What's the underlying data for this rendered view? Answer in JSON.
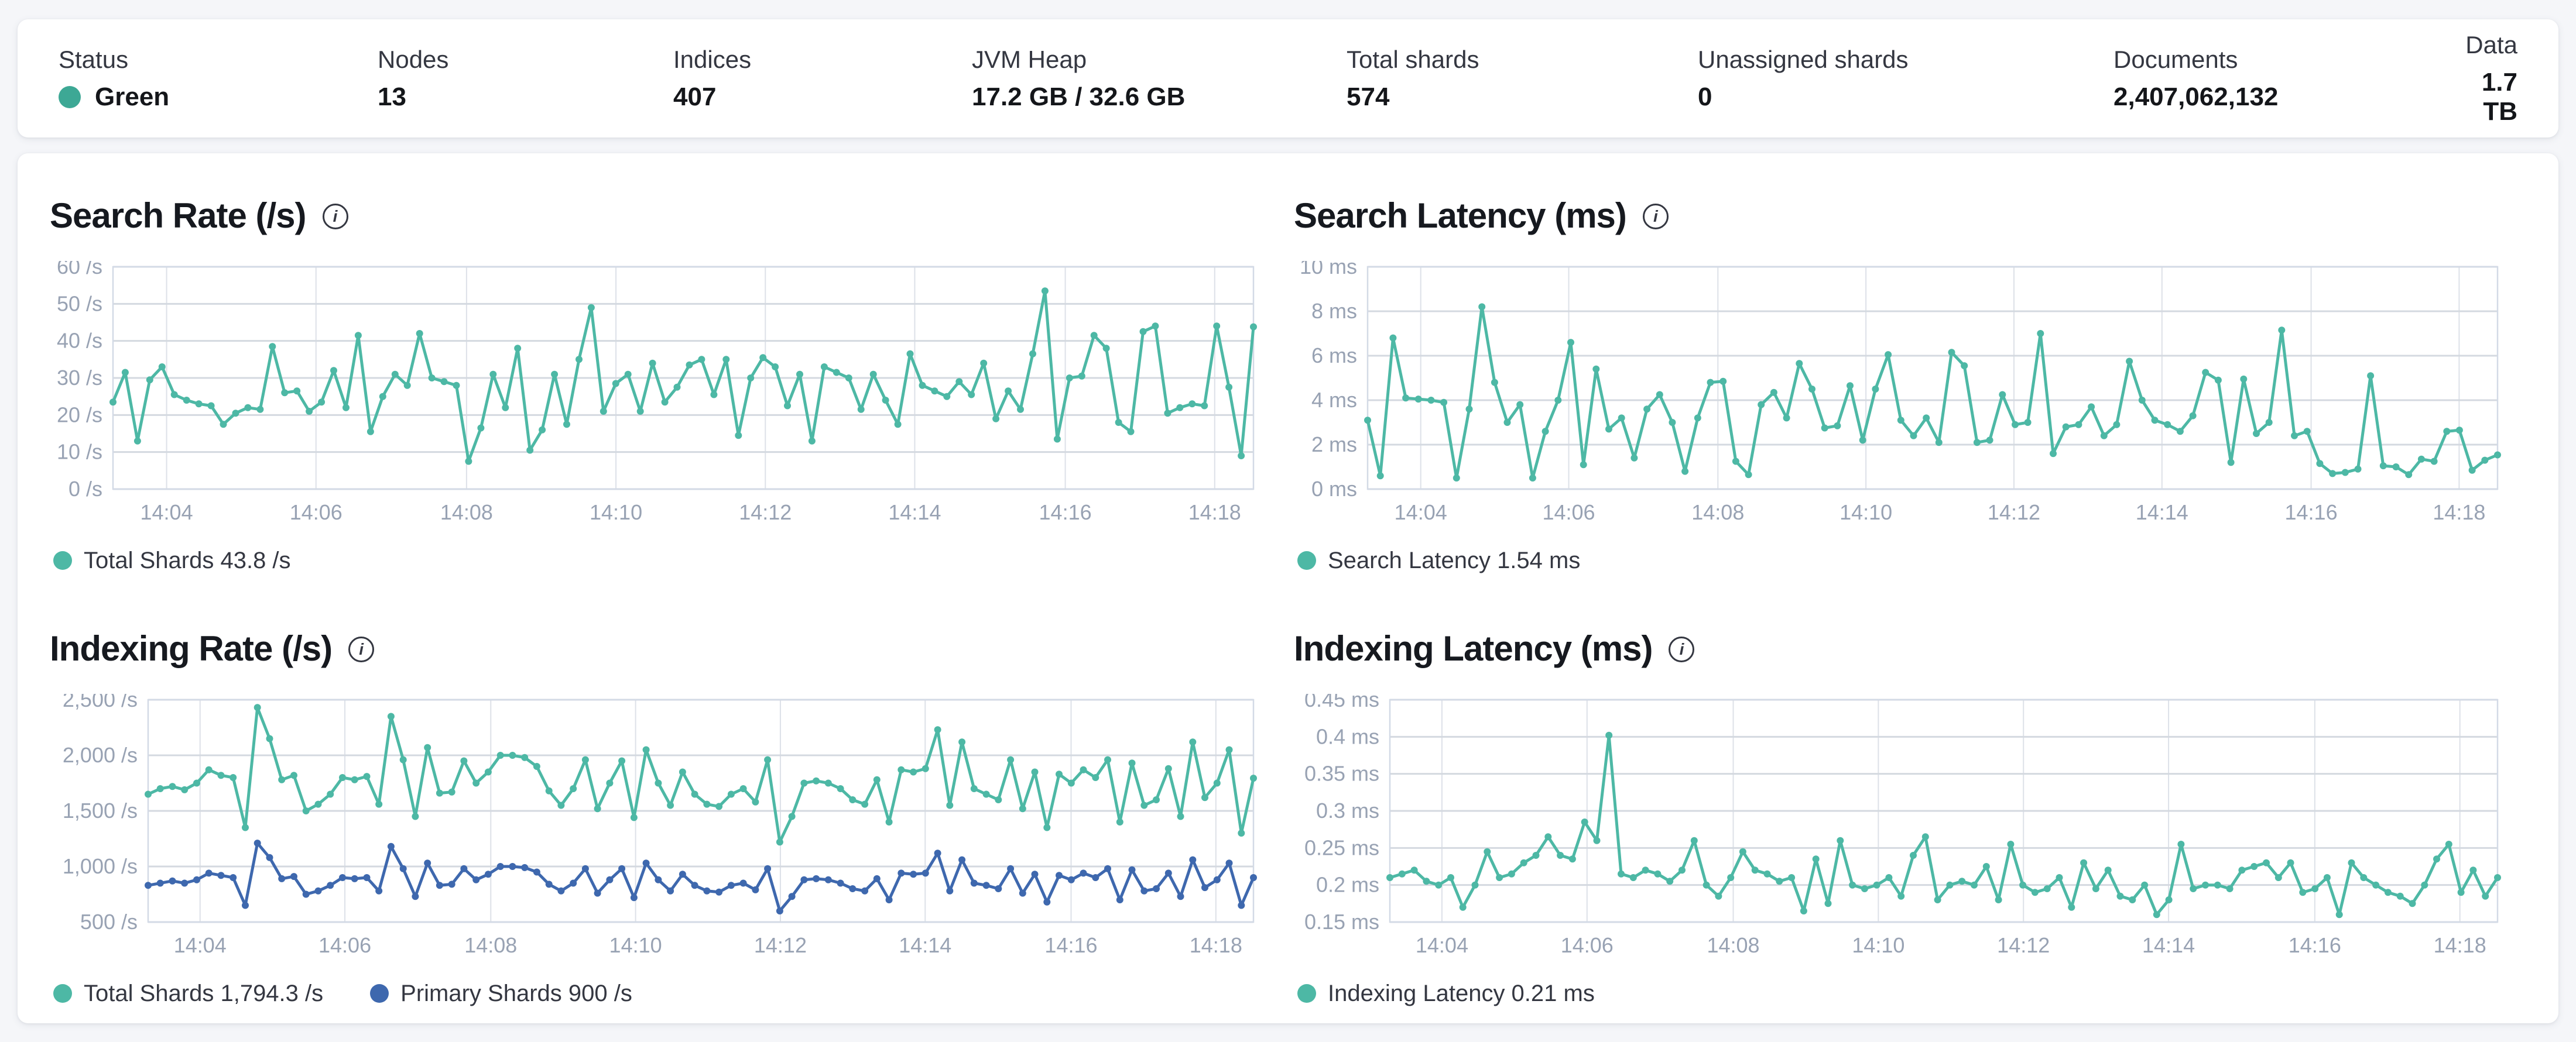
{
  "status_bar": {
    "items": [
      {
        "label": "Status",
        "value": "Green",
        "type": "status",
        "dot_color": "#3DA895"
      },
      {
        "label": "Nodes",
        "value": "13"
      },
      {
        "label": "Indices",
        "value": "407"
      },
      {
        "label": "JVM Heap",
        "value": "17.2 GB / 32.6 GB"
      },
      {
        "label": "Total shards",
        "value": "574"
      },
      {
        "label": "Unassigned shards",
        "value": "0"
      },
      {
        "label": "Documents",
        "value": "2,407,062,132"
      },
      {
        "label": "Data",
        "value": "1.7 TB",
        "align": "right"
      }
    ]
  },
  "colors": {
    "teal": "#4DB8A5",
    "blue": "#3E68AE",
    "status_green_dot": "#3DA895",
    "grid_h": "#d4d9e0",
    "grid_v": "#dde1e8",
    "plot_border": "#d3dae6",
    "axis_text": "#98a2b3"
  },
  "info_icon_glyph": "i",
  "chart_data": [
    {
      "id": "search-rate",
      "type": "line",
      "title": "Search Rate (/s)",
      "ylim": [
        0,
        60
      ],
      "y_ticks": [
        {
          "label": "60 /s",
          "value": 60
        },
        {
          "label": "50 /s",
          "value": 50
        },
        {
          "label": "40 /s",
          "value": 40
        },
        {
          "label": "30 /s",
          "value": 30
        },
        {
          "label": "20 /s",
          "value": 20
        },
        {
          "label": "10 /s",
          "value": 10
        },
        {
          "label": "0 /s",
          "value": 0
        }
      ],
      "x_ticks": [
        {
          "label": "14:04",
          "f": 0.047
        },
        {
          "label": "14:06",
          "f": 0.178
        },
        {
          "label": "14:08",
          "f": 0.31
        },
        {
          "label": "14:10",
          "f": 0.441
        },
        {
          "label": "14:12",
          "f": 0.572
        },
        {
          "label": "14:14",
          "f": 0.703
        },
        {
          "label": "14:16",
          "f": 0.835
        },
        {
          "label": "14:18",
          "f": 0.966
        }
      ],
      "series": [
        {
          "name": "total-shards",
          "legend_label": "Total Shards 43.8 /s",
          "color": "#4DB8A5",
          "values": [
            23.5,
            31.5,
            13,
            29.5,
            33,
            25.5,
            24,
            23,
            22.5,
            17.5,
            20.5,
            22,
            21.5,
            38.5,
            26,
            26.5,
            21,
            23.5,
            32,
            22,
            41.5,
            15.5,
            25,
            31,
            28,
            42,
            30,
            29,
            28,
            7.5,
            16.5,
            31,
            22,
            38,
            10.5,
            16,
            31,
            17.5,
            35,
            49,
            21,
            28.5,
            31,
            21,
            34,
            23.5,
            27.5,
            33.5,
            35,
            25.5,
            35,
            14.5,
            30,
            35.5,
            33,
            22.5,
            31,
            13,
            33,
            31.5,
            30,
            21.5,
            31,
            24,
            17.5,
            36.5,
            28,
            26.5,
            25,
            29,
            25.5,
            34,
            19,
            26.5,
            21.5,
            36.5,
            53.5,
            13.5,
            30,
            30.5,
            41.5,
            38,
            18,
            15.5,
            42.5,
            44,
            20.5,
            22,
            23,
            22.5,
            44,
            27.5,
            9,
            43.8
          ]
        }
      ]
    },
    {
      "id": "search-latency",
      "type": "line",
      "title": "Search Latency (ms)",
      "ylim": [
        0,
        10
      ],
      "y_ticks": [
        {
          "label": "10 ms",
          "value": 10
        },
        {
          "label": "8 ms",
          "value": 8
        },
        {
          "label": "6 ms",
          "value": 6
        },
        {
          "label": "4 ms",
          "value": 4
        },
        {
          "label": "2 ms",
          "value": 2
        },
        {
          "label": "0 ms",
          "value": 0
        }
      ],
      "x_ticks": [
        {
          "label": "14:04",
          "f": 0.047
        },
        {
          "label": "14:06",
          "f": 0.178
        },
        {
          "label": "14:08",
          "f": 0.31
        },
        {
          "label": "14:10",
          "f": 0.441
        },
        {
          "label": "14:12",
          "f": 0.572
        },
        {
          "label": "14:14",
          "f": 0.703
        },
        {
          "label": "14:16",
          "f": 0.835
        },
        {
          "label": "14:18",
          "f": 0.966
        }
      ],
      "series": [
        {
          "name": "search-latency",
          "legend_label": "Search Latency 1.54 ms",
          "color": "#4DB8A5",
          "values": [
            3.1,
            0.6,
            6.8,
            4.1,
            4.05,
            4.0,
            3.9,
            0.5,
            3.6,
            8.2,
            4.8,
            3.0,
            3.8,
            0.5,
            2.6,
            4.0,
            6.6,
            1.1,
            5.4,
            2.7,
            3.2,
            1.4,
            3.6,
            4.25,
            3.0,
            0.8,
            3.2,
            4.8,
            4.85,
            1.25,
            0.65,
            3.8,
            4.35,
            3.2,
            5.65,
            4.5,
            2.75,
            2.85,
            4.65,
            2.2,
            4.5,
            6.05,
            3.1,
            2.4,
            3.2,
            2.1,
            6.15,
            5.55,
            2.1,
            2.2,
            4.25,
            2.9,
            3.0,
            7.0,
            1.6,
            2.8,
            2.9,
            3.7,
            2.4,
            2.9,
            5.75,
            4.0,
            3.1,
            2.9,
            2.6,
            3.3,
            5.25,
            4.9,
            1.2,
            4.95,
            2.5,
            3.0,
            7.15,
            2.4,
            2.6,
            1.15,
            0.7,
            0.75,
            0.9,
            5.1,
            1.05,
            1.0,
            0.65,
            1.35,
            1.25,
            2.6,
            2.65,
            0.85,
            1.3,
            1.54
          ]
        }
      ]
    },
    {
      "id": "indexing-rate",
      "type": "line",
      "title": "Indexing Rate (/s)",
      "ylim": [
        500,
        2500
      ],
      "y_ticks": [
        {
          "label": "2,500 /s",
          "value": 2500
        },
        {
          "label": "2,000 /s",
          "value": 2000
        },
        {
          "label": "1,500 /s",
          "value": 1500
        },
        {
          "label": "1,000 /s",
          "value": 1000
        },
        {
          "label": "500 /s",
          "value": 500
        }
      ],
      "x_ticks": [
        {
          "label": "14:04",
          "f": 0.047
        },
        {
          "label": "14:06",
          "f": 0.178
        },
        {
          "label": "14:08",
          "f": 0.31
        },
        {
          "label": "14:10",
          "f": 0.441
        },
        {
          "label": "14:12",
          "f": 0.572
        },
        {
          "label": "14:14",
          "f": 0.703
        },
        {
          "label": "14:16",
          "f": 0.835
        },
        {
          "label": "14:18",
          "f": 0.966
        }
      ],
      "series": [
        {
          "name": "total-shards",
          "legend_label": "Total Shards 1,794.3 /s",
          "color": "#4DB8A5",
          "values": [
            1650,
            1700,
            1720,
            1690,
            1750,
            1870,
            1820,
            1800,
            1350,
            2430,
            2150,
            1780,
            1820,
            1500,
            1560,
            1650,
            1800,
            1780,
            1810,
            1560,
            2350,
            1960,
            1450,
            2070,
            1660,
            1670,
            1950,
            1750,
            1850,
            2000,
            2000,
            1980,
            1900,
            1680,
            1550,
            1700,
            1960,
            1520,
            1750,
            1950,
            1440,
            2050,
            1750,
            1550,
            1850,
            1650,
            1560,
            1540,
            1650,
            1700,
            1580,
            1960,
            1220,
            1450,
            1750,
            1770,
            1750,
            1700,
            1600,
            1560,
            1780,
            1400,
            1870,
            1850,
            1880,
            2230,
            1550,
            2120,
            1700,
            1650,
            1600,
            1960,
            1520,
            1850,
            1350,
            1830,
            1750,
            1870,
            1800,
            1960,
            1400,
            1930,
            1550,
            1600,
            1880,
            1450,
            2120,
            1620,
            1750,
            2050,
            1300,
            1794.3
          ]
        },
        {
          "name": "primary-shards",
          "legend_label": "Primary Shards 900 /s",
          "color": "#3E68AE",
          "values": [
            830,
            850,
            870,
            850,
            880,
            940,
            920,
            900,
            650,
            1210,
            1080,
            890,
            910,
            750,
            780,
            830,
            900,
            890,
            900,
            780,
            1180,
            980,
            730,
            1030,
            830,
            840,
            980,
            880,
            930,
            1000,
            1000,
            990,
            950,
            840,
            780,
            850,
            980,
            760,
            880,
            980,
            720,
            1030,
            880,
            780,
            930,
            830,
            780,
            770,
            830,
            850,
            790,
            980,
            600,
            730,
            880,
            890,
            880,
            850,
            800,
            780,
            890,
            700,
            940,
            930,
            940,
            1120,
            780,
            1060,
            850,
            830,
            800,
            980,
            760,
            930,
            680,
            920,
            880,
            940,
            900,
            980,
            700,
            970,
            780,
            800,
            940,
            730,
            1060,
            810,
            880,
            1030,
            650,
            900
          ]
        }
      ]
    },
    {
      "id": "indexing-latency",
      "type": "line",
      "title": "Indexing Latency (ms)",
      "ylim": [
        0.15,
        0.45
      ],
      "y_ticks": [
        {
          "label": "0.45 ms",
          "value": 0.45
        },
        {
          "label": "0.4 ms",
          "value": 0.4
        },
        {
          "label": "0.35 ms",
          "value": 0.35
        },
        {
          "label": "0.3 ms",
          "value": 0.3
        },
        {
          "label": "0.25 ms",
          "value": 0.25
        },
        {
          "label": "0.2 ms",
          "value": 0.2
        },
        {
          "label": "0.15 ms",
          "value": 0.15
        }
      ],
      "x_ticks": [
        {
          "label": "14:04",
          "f": 0.047
        },
        {
          "label": "14:06",
          "f": 0.178
        },
        {
          "label": "14:08",
          "f": 0.31
        },
        {
          "label": "14:10",
          "f": 0.441
        },
        {
          "label": "14:12",
          "f": 0.572
        },
        {
          "label": "14:14",
          "f": 0.703
        },
        {
          "label": "14:16",
          "f": 0.835
        },
        {
          "label": "14:18",
          "f": 0.966
        }
      ],
      "series": [
        {
          "name": "indexing-latency",
          "legend_label": "Indexing Latency 0.21 ms",
          "color": "#4DB8A5",
          "values": [
            0.21,
            0.215,
            0.22,
            0.205,
            0.2,
            0.21,
            0.17,
            0.2,
            0.245,
            0.21,
            0.215,
            0.23,
            0.24,
            0.265,
            0.24,
            0.235,
            0.285,
            0.26,
            0.402,
            0.215,
            0.21,
            0.22,
            0.215,
            0.205,
            0.22,
            0.26,
            0.2,
            0.185,
            0.21,
            0.245,
            0.22,
            0.215,
            0.205,
            0.21,
            0.165,
            0.235,
            0.175,
            0.26,
            0.2,
            0.195,
            0.2,
            0.21,
            0.185,
            0.24,
            0.265,
            0.18,
            0.2,
            0.205,
            0.2,
            0.225,
            0.18,
            0.255,
            0.2,
            0.19,
            0.195,
            0.21,
            0.17,
            0.23,
            0.195,
            0.22,
            0.185,
            0.18,
            0.2,
            0.16,
            0.18,
            0.255,
            0.195,
            0.2,
            0.2,
            0.195,
            0.22,
            0.225,
            0.23,
            0.21,
            0.23,
            0.19,
            0.195,
            0.21,
            0.16,
            0.23,
            0.21,
            0.2,
            0.19,
            0.185,
            0.175,
            0.2,
            0.235,
            0.255,
            0.19,
            0.22,
            0.185,
            0.21
          ]
        }
      ]
    }
  ]
}
